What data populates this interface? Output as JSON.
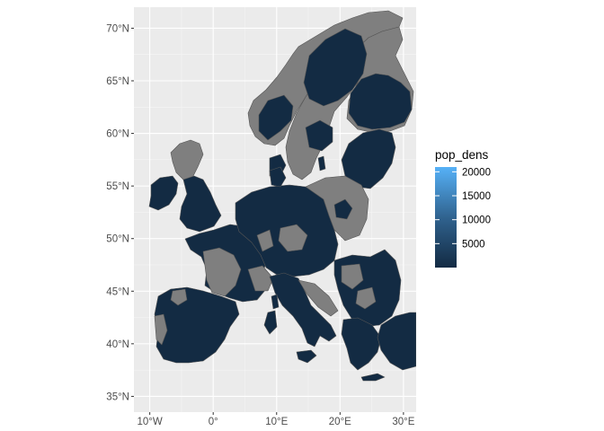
{
  "map": {
    "axes": {
      "x_ticks": [
        {
          "label": "10°W",
          "value": -10
        },
        {
          "label": "0°",
          "value": 0
        },
        {
          "label": "10°E",
          "value": 10
        },
        {
          "label": "20°E",
          "value": 20
        },
        {
          "label": "30°E",
          "value": 30
        }
      ],
      "y_ticks": [
        {
          "label": "35°N",
          "value": 35
        },
        {
          "label": "40°N",
          "value": 40
        },
        {
          "label": "45°N",
          "value": 45
        },
        {
          "label": "50°N",
          "value": 50
        },
        {
          "label": "55°N",
          "value": 55
        },
        {
          "label": "60°N",
          "value": 60
        },
        {
          "label": "65°N",
          "value": 65
        },
        {
          "label": "70°N",
          "value": 70
        }
      ],
      "xlim": [
        -12.5,
        32
      ],
      "ylim": [
        33.5,
        72
      ]
    },
    "colors": {
      "panel_background": "#ebebeb",
      "grid_major": "#ffffff",
      "grid_minor": "#f5f5f5",
      "na_fill": "#7f7f7f",
      "low_fill": "#132b43",
      "high_fill": "#56b1f7",
      "border": "#555555"
    },
    "legend": {
      "title": "pop_dens",
      "scale_min": 0,
      "scale_max": 21000,
      "breaks": [
        {
          "label": "20000",
          "value": 20000
        },
        {
          "label": "15000",
          "value": 15000
        },
        {
          "label": "10000",
          "value": 10000
        },
        {
          "label": "5000",
          "value": 5000
        }
      ]
    }
  }
}
